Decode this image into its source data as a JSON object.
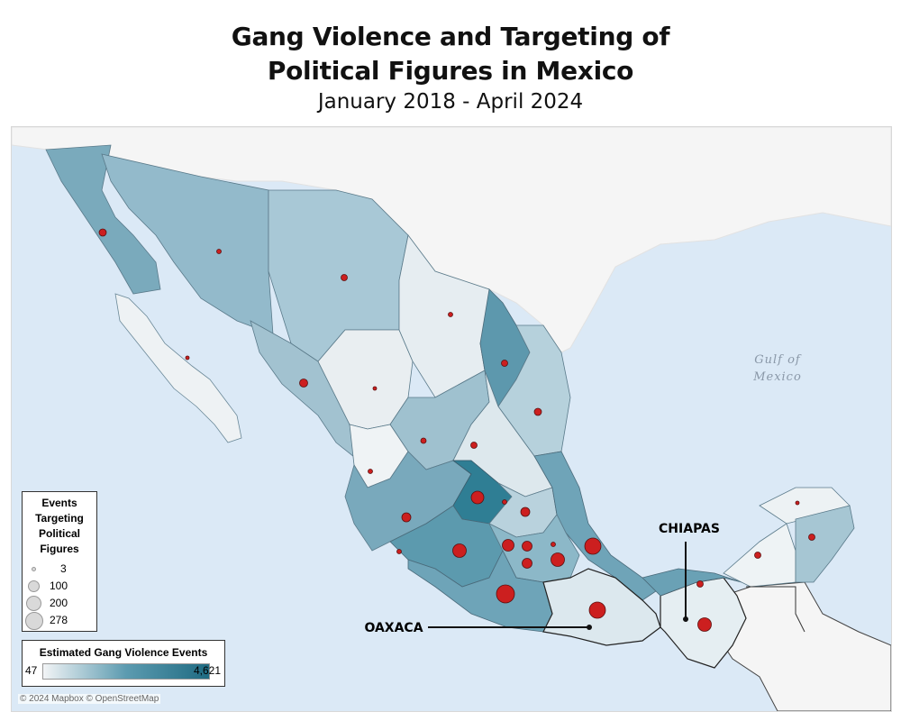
{
  "title_line1": "Gang Violence and Targeting of",
  "title_line2": "Political Figures in Mexico",
  "subtitle": "January 2018 - April 2024",
  "gulf_label": [
    "Gulf of",
    "Mexico"
  ],
  "callouts": {
    "chiapas": "CHIAPAS",
    "oaxaca": "OAXACA"
  },
  "legend_events": {
    "title": [
      "Events",
      "Targeting",
      "Political",
      "Figures"
    ],
    "items": [
      "3",
      "100",
      "200",
      "278"
    ]
  },
  "legend_violence": {
    "title": "Estimated Gang Violence Events",
    "min": "47",
    "max": "4,621"
  },
  "attribution": "© 2024 Mapbox © OpenStreetMap",
  "colors": {
    "water": "#dbe9f6",
    "land": "#f7f7f7",
    "marker": "#cc1f1f",
    "scale_low": "#f2f4f6",
    "scale_high": "#1f6b82"
  }
}
